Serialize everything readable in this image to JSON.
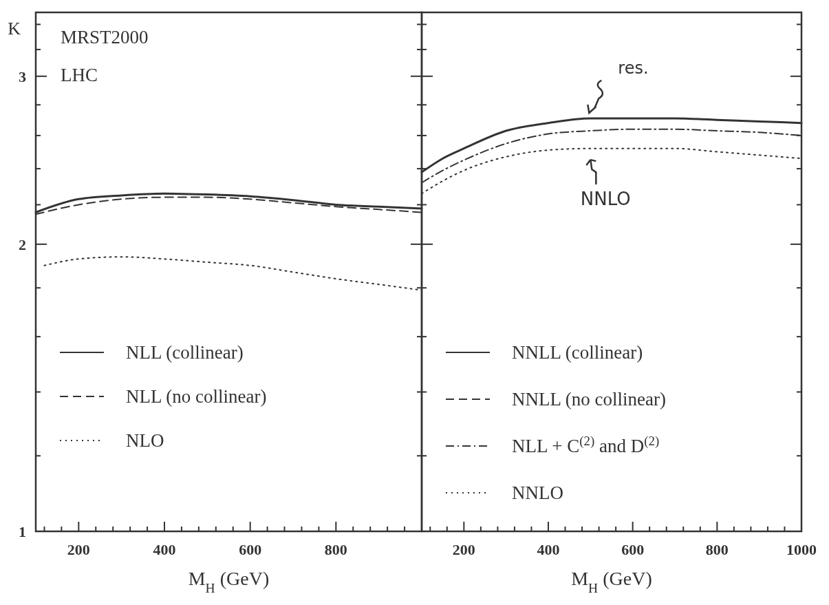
{
  "chart_data": [
    {
      "type": "line",
      "xlabel": "M$_{H}$ (GeV)",
      "ylabel": "K",
      "log": true,
      "legend": "bottom left",
      "xlim": [
        100,
        1000
      ],
      "ylim": [
        1,
        3.5
      ],
      "xticks": [
        {
          "value": 120,
          "label": null
        },
        {
          "value": 160,
          "label": null
        },
        200,
        {
          "value": 240,
          "label": null
        },
        {
          "value": 280,
          "label": null
        },
        {
          "value": 320,
          "label": null
        },
        {
          "value": 360,
          "label": null
        },
        400,
        {
          "value": 440,
          "label": null
        },
        {
          "value": 480,
          "label": null
        },
        {
          "value": 520,
          "label": null
        },
        {
          "value": 560,
          "label": null
        },
        600,
        {
          "value": 640,
          "label": null
        },
        {
          "value": 680,
          "label": null
        },
        {
          "value": 720,
          "label": null
        },
        {
          "value": 760,
          "label": null
        },
        800,
        {
          "value": 840,
          "label": null
        },
        {
          "value": 880,
          "label": null
        },
        {
          "value": 920,
          "label": null
        },
        {
          "value": 960,
          "label": null
        },
        {
          "value": 1000,
          "label": null
        }
      ],
      "yticks": [
        1,
        {
          "value": 1.2,
          "label": null
        },
        {
          "value": 1.4,
          "label": null
        },
        {
          "value": 1.6,
          "label": null
        },
        {
          "value": 1.8,
          "label": null
        },
        2,
        {
          "value": 2.2,
          "label": null
        },
        {
          "value": 2.4,
          "label": null
        },
        {
          "value": 2.6,
          "label": null
        },
        {
          "value": 2.8,
          "label": null
        },
        3,
        {
          "value": 3.2,
          "label": null
        },
        {
          "value": 3.4,
          "label": null
        }
      ],
      "annotations": [
        "MRST2000",
        "LHC"
      ],
      "series": [
        {
          "name": "NLL (collinear)",
          "color": "#333333",
          "line_style": "solid",
          "x": [
            100,
            200,
            300,
            400,
            500,
            600,
            700,
            800,
            900,
            1000
          ],
          "values": [
            2.16,
            2.23,
            2.25,
            2.26,
            2.255,
            2.245,
            2.225,
            2.2,
            2.19,
            2.18
          ]
        },
        {
          "name": "NLL (no collinear)",
          "color": "#333333",
          "line_style": "dashed",
          "x": [
            100,
            200,
            300,
            400,
            500,
            600,
            700,
            800,
            900,
            1000
          ],
          "values": [
            2.15,
            2.2,
            2.23,
            2.24,
            2.24,
            2.23,
            2.21,
            2.19,
            2.175,
            2.16
          ]
        },
        {
          "name": "NLO",
          "color": "#333333",
          "line_style": "dotted",
          "x": [
            120,
            200,
            300,
            400,
            500,
            600,
            700,
            800,
            900,
            1000
          ],
          "values": [
            1.9,
            1.93,
            1.94,
            1.93,
            1.915,
            1.9,
            1.87,
            1.84,
            1.815,
            1.79
          ]
        }
      ]
    },
    {
      "type": "line",
      "xlabel": "M$_{H}$ (GeV)",
      "log": true,
      "legend": "bottom left",
      "tick_labels": "x",
      "xlim": [
        100,
        1000
      ],
      "ylim": [
        1,
        3.5
      ],
      "xticks": [
        {
          "value": 120,
          "label": null
        },
        {
          "value": 160,
          "label": null
        },
        200,
        {
          "value": 240,
          "label": null
        },
        {
          "value": 280,
          "label": null
        },
        {
          "value": 320,
          "label": null
        },
        {
          "value": 360,
          "label": null
        },
        400,
        {
          "value": 440,
          "label": null
        },
        {
          "value": 480,
          "label": null
        },
        {
          "value": 520,
          "label": null
        },
        {
          "value": 560,
          "label": null
        },
        600,
        {
          "value": 640,
          "label": null
        },
        {
          "value": 680,
          "label": null
        },
        {
          "value": 720,
          "label": null
        },
        {
          "value": 760,
          "label": null
        },
        800,
        {
          "value": 840,
          "label": null
        },
        {
          "value": 880,
          "label": null
        },
        {
          "value": 920,
          "label": null
        },
        {
          "value": 960,
          "label": null
        },
        1000
      ],
      "yticks": [
        1,
        {
          "value": 1.2,
          "label": null
        },
        {
          "value": 1.4,
          "label": null
        },
        {
          "value": 1.6,
          "label": null
        },
        {
          "value": 1.8,
          "label": null
        },
        2,
        {
          "value": 2.2,
          "label": null
        },
        {
          "value": 2.4,
          "label": null
        },
        {
          "value": 2.6,
          "label": null
        },
        {
          "value": 2.8,
          "label": null
        },
        3,
        {
          "value": 3.2,
          "label": null
        },
        {
          "value": 3.4,
          "label": null
        }
      ],
      "annotations": [
        {
          "text": "res.",
          "x": 500,
          "y": 2.71
        },
        {
          "text": "NNLO",
          "x": 500,
          "y": 2.51
        }
      ],
      "series": [
        {
          "name": "NNLL (collinear)",
          "color": "#333333",
          "line_style": "solid",
          "x": [
            100,
            150,
            200,
            300,
            400,
            500,
            600,
            700,
            800,
            900,
            1000
          ],
          "values": [
            2.38,
            2.46,
            2.52,
            2.63,
            2.68,
            2.71,
            2.71,
            2.71,
            2.7,
            2.69,
            2.68
          ]
        },
        {
          "name": "NNLL (no collinear)",
          "color": "#333333",
          "line_style": "dashed"
        },
        {
          "name": "NLL + C$^{(2)}$ and D$^{(2)}$",
          "color": "#333333",
          "line_style": "dashdot",
          "x": [
            100,
            150,
            200,
            300,
            400,
            500,
            600,
            700,
            800,
            900,
            1000
          ],
          "values": [
            2.32,
            2.39,
            2.45,
            2.55,
            2.61,
            2.63,
            2.64,
            2.64,
            2.63,
            2.62,
            2.6
          ]
        },
        {
          "name": "NNLO",
          "color": "#333333",
          "line_style": "dotted",
          "x": [
            100,
            150,
            200,
            300,
            400,
            500,
            600,
            700,
            800,
            900,
            1000
          ],
          "values": [
            2.26,
            2.33,
            2.39,
            2.47,
            2.51,
            2.52,
            2.52,
            2.52,
            2.5,
            2.48,
            2.46
          ]
        }
      ]
    }
  ]
}
